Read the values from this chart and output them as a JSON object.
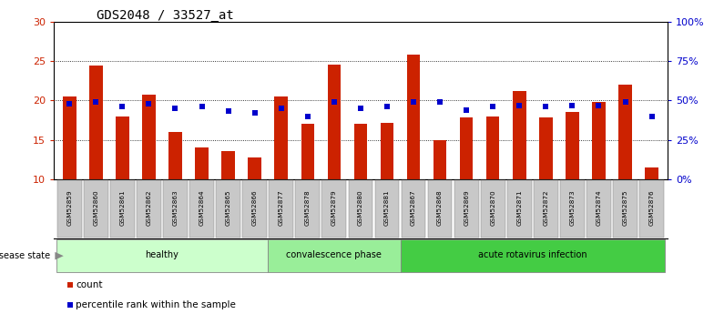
{
  "title": "GDS2048 / 33527_at",
  "categories": [
    "GSM52859",
    "GSM52860",
    "GSM52861",
    "GSM52862",
    "GSM52863",
    "GSM52864",
    "GSM52865",
    "GSM52866",
    "GSM52877",
    "GSM52878",
    "GSM52879",
    "GSM52880",
    "GSM52881",
    "GSM52867",
    "GSM52868",
    "GSM52869",
    "GSM52870",
    "GSM52871",
    "GSM52872",
    "GSM52873",
    "GSM52874",
    "GSM52875",
    "GSM52876"
  ],
  "count_values": [
    20.5,
    24.5,
    18.0,
    20.8,
    16.0,
    14.0,
    13.5,
    12.8,
    20.5,
    17.0,
    24.6,
    17.0,
    17.2,
    25.8,
    15.0,
    17.8,
    18.0,
    21.2,
    17.8,
    18.5,
    19.8,
    22.0,
    11.5
  ],
  "percentile_values": [
    48,
    49,
    46,
    48,
    45,
    46,
    43,
    42,
    45,
    40,
    49,
    45,
    46,
    49,
    49,
    44,
    46,
    47,
    46,
    47,
    47,
    49,
    40
  ],
  "bar_color": "#CC2200",
  "square_color": "#0000CC",
  "ylim_left": [
    10,
    30
  ],
  "ylim_right": [
    0,
    100
  ],
  "yticks_left": [
    10,
    15,
    20,
    25,
    30
  ],
  "yticks_right": [
    0,
    25,
    50,
    75,
    100
  ],
  "ytick_labels_right": [
    "0%",
    "25%",
    "50%",
    "75%",
    "100%"
  ],
  "groups": [
    {
      "label": "healthy",
      "start": 0,
      "end": 7,
      "color": "#CCFFCC"
    },
    {
      "label": "convalescence phase",
      "start": 8,
      "end": 12,
      "color": "#99EE99"
    },
    {
      "label": "acute rotavirus infection",
      "start": 13,
      "end": 22,
      "color": "#44CC44"
    }
  ],
  "disease_state_label": "disease state",
  "legend_items": [
    {
      "label": "count",
      "color": "#CC2200"
    },
    {
      "label": "percentile rank within the sample",
      "color": "#0000CC"
    }
  ],
  "title_fontsize": 10,
  "bar_width": 0.5
}
